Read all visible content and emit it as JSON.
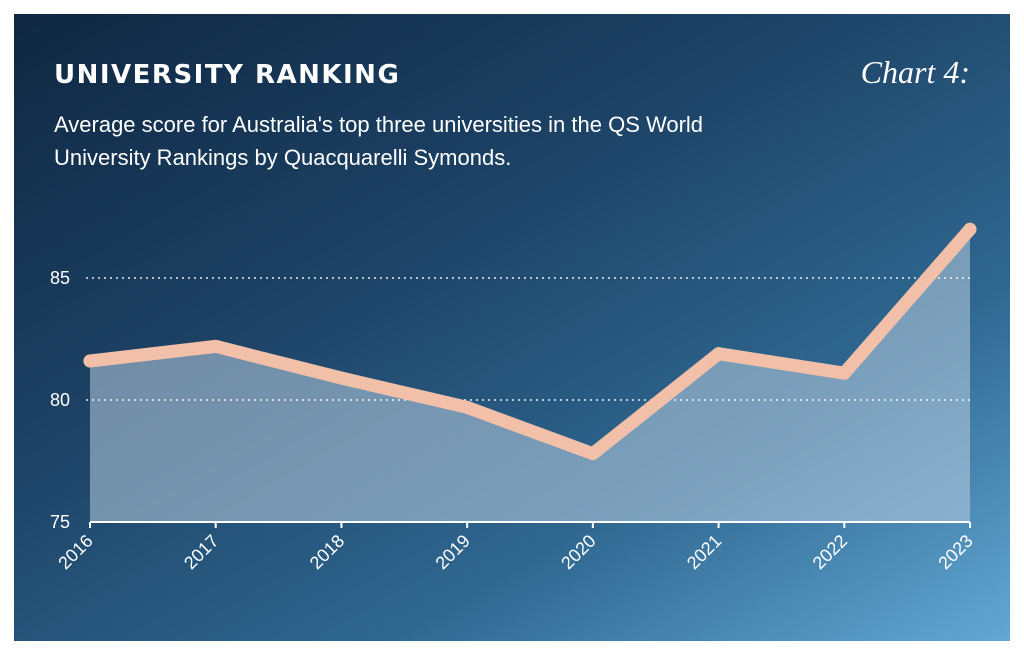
{
  "header": {
    "title": "UNIVERSITY RANKING",
    "chart_label": "Chart 4:",
    "subtitle": "Average score for Australia's top three universities in the QS World University Rankings by Quacquarelli Symonds."
  },
  "colors": {
    "line": "#f2c0a8",
    "area": "#b9cee0",
    "grid": "#ffffff",
    "text": "#ffffff"
  },
  "chart_data": {
    "type": "area",
    "title": "UNIVERSITY RANKING",
    "subtitle": "Average score for Australia's top three universities in the QS World University Rankings by Quacquarelli Symonds.",
    "xlabel": "",
    "ylabel": "",
    "categories": [
      "2016",
      "2017",
      "2018",
      "2019",
      "2020",
      "2021",
      "2022",
      "2023"
    ],
    "series": [
      {
        "values": [
          81.6,
          82.2,
          80.9,
          79.7,
          77.8,
          81.9,
          81.1,
          87.0
        ]
      }
    ],
    "ylim": [
      75,
      88.2
    ],
    "yticks": [
      75,
      80,
      85
    ],
    "gridlines": [
      80,
      85
    ],
    "grid": "dotted horizontal",
    "legend": "none"
  }
}
